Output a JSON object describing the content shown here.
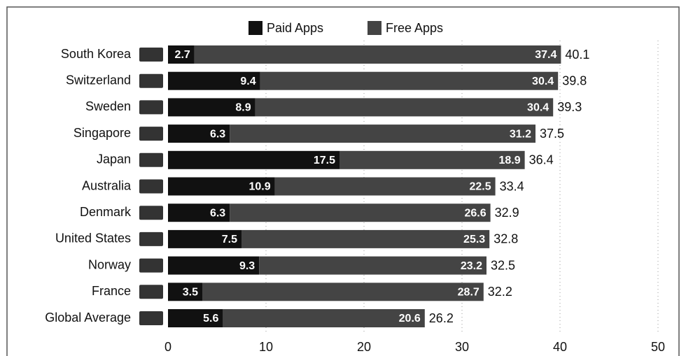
{
  "chart_data": {
    "type": "stacked_bar_horizontal",
    "categories": [
      "South Korea",
      "Switzerland",
      "Sweden",
      "Singapore",
      "Japan",
      "Australia",
      "Denmark",
      "United States",
      "Norway",
      "France",
      "Global Average"
    ],
    "series": [
      {
        "name": "Paid Apps",
        "color": "#111111",
        "values": [
          2.7,
          9.4,
          8.9,
          6.3,
          17.5,
          10.9,
          6.3,
          7.5,
          9.3,
          3.5,
          5.6
        ]
      },
      {
        "name": "Free Apps",
        "color": "#444444",
        "values": [
          37.4,
          30.4,
          30.4,
          31.2,
          18.9,
          22.5,
          26.6,
          25.3,
          23.2,
          28.7,
          20.6
        ]
      }
    ],
    "totals": [
      40.1,
      39.8,
      39.3,
      37.5,
      36.4,
      33.4,
      32.9,
      32.8,
      32.5,
      32.2,
      26.2
    ],
    "xlim": [
      0,
      50
    ],
    "xticks": [
      0,
      10,
      20,
      30,
      40,
      50
    ],
    "grid": true,
    "legend": "top"
  }
}
